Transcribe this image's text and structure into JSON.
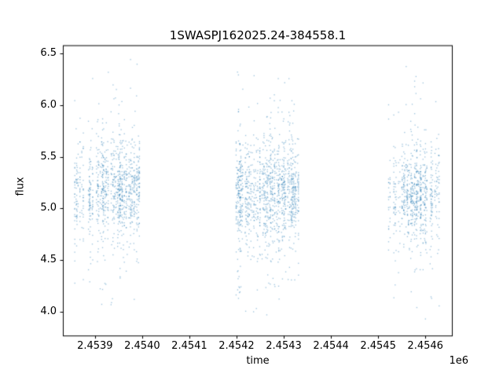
{
  "chart_data": {
    "type": "scatter",
    "title": "1SWASPJ162025.24-384558.1",
    "xlabel": "time",
    "ylabel": "flux",
    "x_offset_label": "1e6",
    "grid": false,
    "legend": null,
    "marker_color": "#1f77b4",
    "marker_alpha": 0.45,
    "marker_size_px": 1.3,
    "xlim": [
      2453832,
      2454658
    ],
    "ylim": [
      3.77,
      6.58
    ],
    "xticks": {
      "values": [
        2453900,
        2454000,
        2454100,
        2454200,
        2454300,
        2454400,
        2454500,
        2454600
      ],
      "labels": [
        "2.4539",
        "2.4540",
        "2.4541",
        "2.4542",
        "2.4543",
        "2.4544",
        "2.4545",
        "2.4546"
      ]
    },
    "yticks": {
      "values": [
        4.0,
        4.5,
        5.0,
        5.5,
        6.0,
        6.5
      ],
      "labels": [
        "4.0",
        "4.5",
        "5.0",
        "5.5",
        "6.0",
        "6.5"
      ]
    },
    "seed": 42,
    "clusters": [
      {
        "x_start": 2453856,
        "x_end": 2453996,
        "night_prob": 0.5,
        "pts_base": 8,
        "pts_extra": 30,
        "y_core_mean": 5.18,
        "y_core_std": 0.21,
        "y_wide_std": 0.42,
        "y_min": 3.98,
        "y_max": 6.45
      },
      {
        "x_start": 2454198,
        "x_end": 2454333,
        "night_prob": 0.55,
        "pts_base": 9,
        "pts_extra": 32,
        "y_core_mean": 5.15,
        "y_core_std": 0.22,
        "y_wide_std": 0.46,
        "y_min": 3.9,
        "y_max": 6.42
      },
      {
        "x_start": 2454522,
        "x_end": 2454632,
        "night_prob": 0.5,
        "pts_base": 8,
        "pts_extra": 28,
        "y_core_mean": 5.12,
        "y_core_std": 0.2,
        "y_wide_std": 0.4,
        "y_min": 3.93,
        "y_max": 6.4
      }
    ]
  }
}
